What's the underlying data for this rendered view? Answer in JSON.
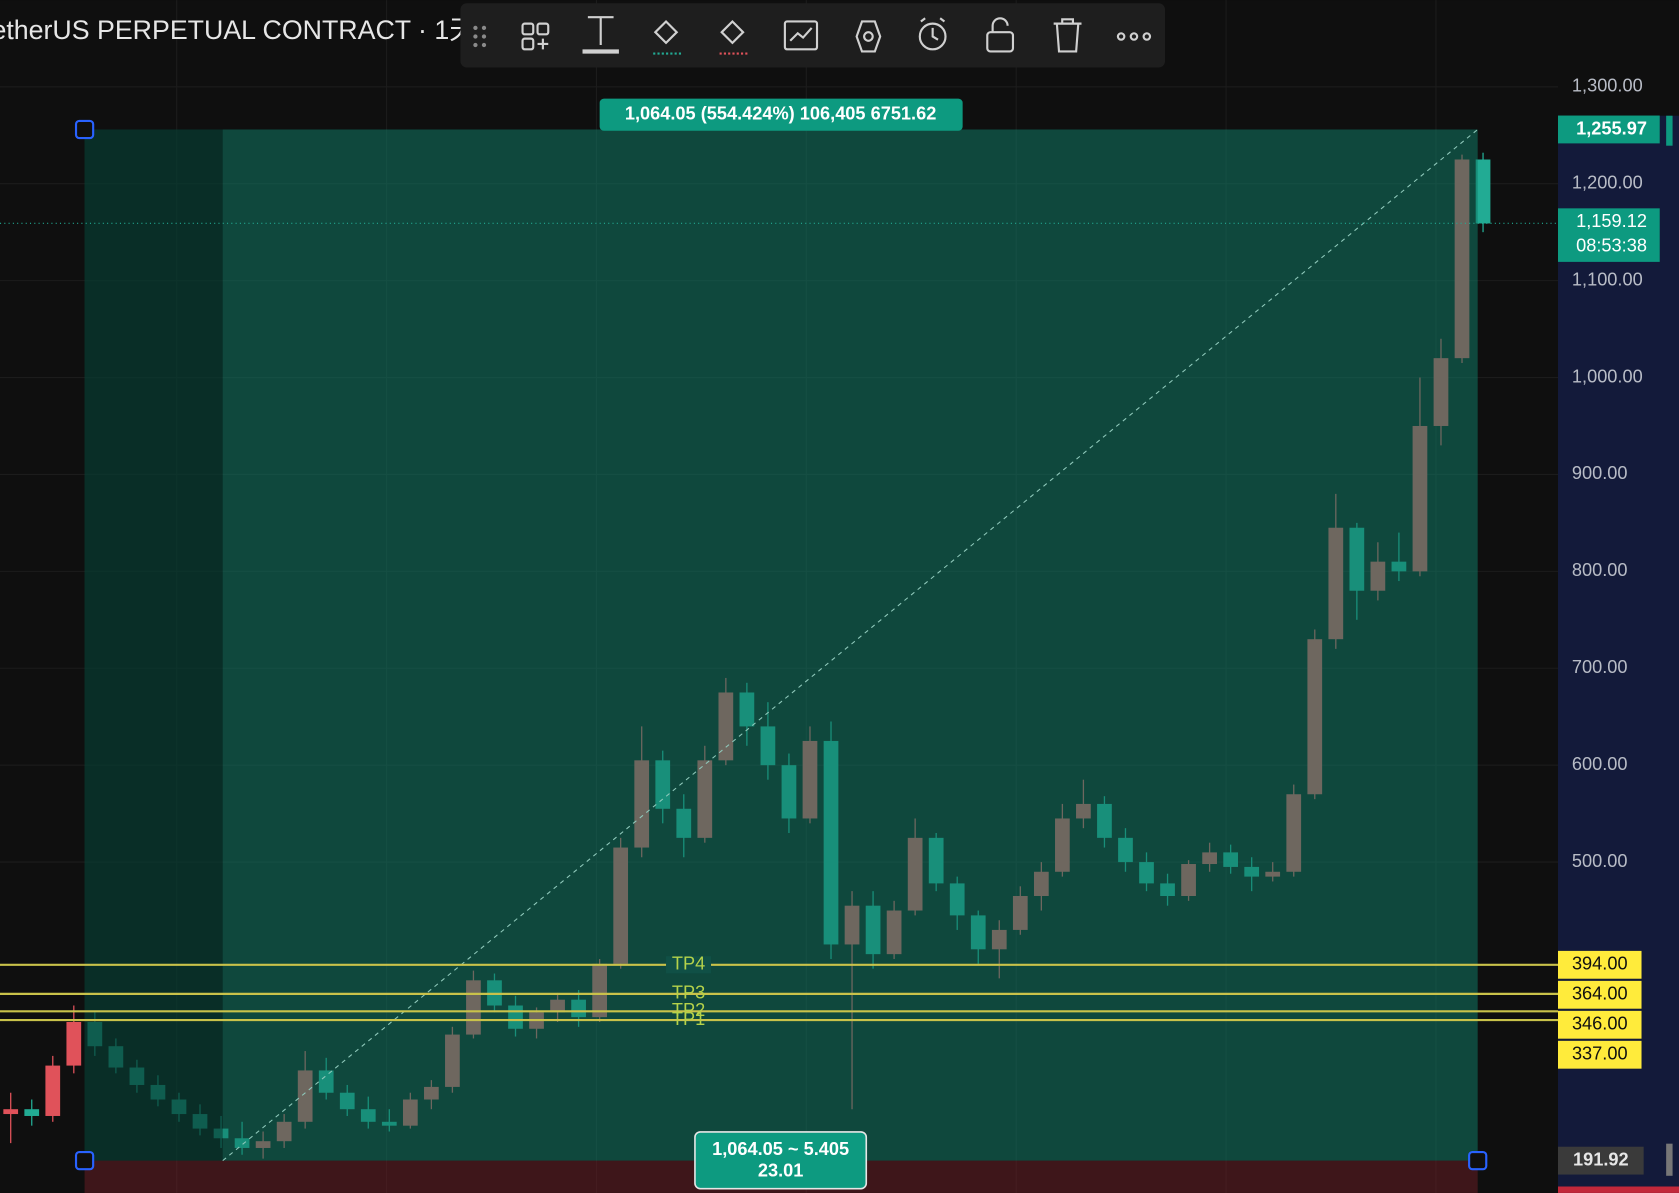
{
  "header": {
    "title": "etherUS PERPETUAL CONTRACT · 1天 ·"
  },
  "chart_data": {
    "type": "candlestick",
    "ylim": [
      158.6,
      1389.5
    ],
    "yticks": [
      {
        "value": 500,
        "label": "500.00"
      },
      {
        "value": 600,
        "label": "600.00"
      },
      {
        "value": 700,
        "label": "700.00"
      },
      {
        "value": 800,
        "label": "800.00"
      },
      {
        "value": 900,
        "label": "900.00"
      },
      {
        "value": 1000,
        "label": "1,000.00"
      },
      {
        "value": 1100,
        "label": "1,100.00"
      },
      {
        "value": 1200,
        "label": "1,200.00"
      },
      {
        "value": 1300,
        "label": "1,300.00"
      }
    ],
    "grid": true,
    "up_color": "#e0525a",
    "down_color": "#22ab94",
    "candles": [
      [
        240,
        262,
        210,
        245
      ],
      [
        245,
        255,
        228,
        238
      ],
      [
        238,
        300,
        232,
        290
      ],
      [
        290,
        352,
        282,
        335
      ],
      [
        335,
        345,
        300,
        310
      ],
      [
        310,
        318,
        282,
        288
      ],
      [
        288,
        296,
        262,
        270
      ],
      [
        270,
        280,
        248,
        255
      ],
      [
        255,
        262,
        232,
        240
      ],
      [
        240,
        250,
        218,
        225
      ],
      [
        225,
        238,
        205,
        215
      ],
      [
        215,
        232,
        198,
        205
      ],
      [
        205,
        222,
        194,
        212
      ],
      [
        212,
        240,
        205,
        232
      ],
      [
        232,
        305,
        225,
        285
      ],
      [
        285,
        298,
        255,
        262
      ],
      [
        262,
        270,
        238,
        245
      ],
      [
        245,
        258,
        225,
        232
      ],
      [
        232,
        245,
        222,
        228
      ],
      [
        228,
        262,
        225,
        255
      ],
      [
        255,
        275,
        245,
        268
      ],
      [
        268,
        330,
        262,
        322
      ],
      [
        322,
        388,
        318,
        378
      ],
      [
        378,
        385,
        345,
        352
      ],
      [
        352,
        362,
        320,
        328
      ],
      [
        328,
        350,
        318,
        345
      ],
      [
        345,
        365,
        335,
        358
      ],
      [
        358,
        368,
        330,
        340
      ],
      [
        340,
        400,
        335,
        395
      ],
      [
        395,
        525,
        390,
        515
      ],
      [
        515,
        640,
        505,
        605
      ],
      [
        605,
        615,
        540,
        555
      ],
      [
        555,
        570,
        505,
        525
      ],
      [
        525,
        620,
        520,
        605
      ],
      [
        605,
        690,
        600,
        675
      ],
      [
        675,
        685,
        620,
        640
      ],
      [
        640,
        665,
        585,
        600
      ],
      [
        600,
        612,
        530,
        545
      ],
      [
        545,
        640,
        540,
        625
      ],
      [
        625,
        645,
        400,
        415
      ],
      [
        415,
        470,
        245,
        455
      ],
      [
        455,
        470,
        390,
        405
      ],
      [
        405,
        460,
        400,
        450
      ],
      [
        450,
        545,
        445,
        525
      ],
      [
        525,
        530,
        470,
        478
      ],
      [
        478,
        485,
        430,
        445
      ],
      [
        445,
        450,
        395,
        410
      ],
      [
        410,
        440,
        380,
        430
      ],
      [
        430,
        475,
        425,
        465
      ],
      [
        465,
        500,
        450,
        490
      ],
      [
        490,
        560,
        485,
        545
      ],
      [
        545,
        585,
        535,
        560
      ],
      [
        560,
        568,
        515,
        525
      ],
      [
        525,
        535,
        490,
        500
      ],
      [
        500,
        510,
        470,
        478
      ],
      [
        478,
        488,
        455,
        465
      ],
      [
        465,
        502,
        460,
        498
      ],
      [
        498,
        520,
        490,
        510
      ],
      [
        510,
        518,
        488,
        495
      ],
      [
        495,
        505,
        470,
        485
      ],
      [
        485,
        500,
        480,
        490
      ],
      [
        490,
        580,
        485,
        570
      ],
      [
        570,
        740,
        565,
        730
      ],
      [
        730,
        880,
        720,
        845
      ],
      [
        845,
        850,
        750,
        780
      ],
      [
        780,
        830,
        770,
        810
      ],
      [
        810,
        840,
        790,
        800
      ],
      [
        800,
        1000,
        795,
        950
      ],
      [
        950,
        1040,
        930,
        1020
      ],
      [
        1020,
        1230,
        1015,
        1225
      ],
      [
        1225,
        1232,
        1150,
        1159
      ]
    ],
    "levels": [
      {
        "name": "TP4",
        "price": {
          "value": 394,
          "label": "394.00"
        }
      },
      {
        "name": "TP3",
        "price": {
          "value": 364,
          "label": "364.00"
        }
      },
      {
        "name": "TP2",
        "price": {
          "value": 346,
          "label": "346.00"
        }
      },
      {
        "name": "TP1",
        "price": {
          "value": 337,
          "label": "337.00"
        }
      }
    ],
    "measure": {
      "label": "1,064.05 (554.424%) 106,405 6751.62",
      "start_price": {
        "value": 191.92,
        "label": "191.92"
      },
      "end_price": {
        "value": 1255.97,
        "label": "1,255.97"
      },
      "summary": [
        "1,064.05 ~ 5.405",
        "23.01"
      ]
    },
    "last_price": {
      "value": 1159.12,
      "label": "1,159.12",
      "countdown": "08:53:38"
    }
  }
}
